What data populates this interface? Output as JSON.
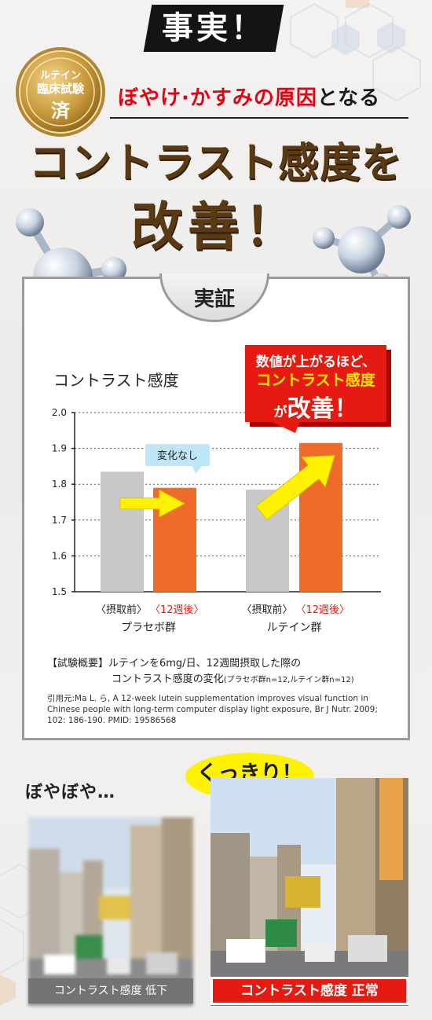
{
  "header": {
    "fact_label": "事実！",
    "badge": {
      "line1": "ルテイン",
      "line2": "臨床試験",
      "line3": "済"
    },
    "subtitle_red": "ぼやけ·かすみの原因",
    "subtitle_rest": "となる",
    "headline_line1": "コントラスト感度を",
    "headline_line2": "改善！"
  },
  "proof": {
    "tab_label": "実証",
    "chart_title": "コントラスト感度",
    "callout": {
      "line1": "数値が上がるほど、",
      "line2": "コントラスト感度",
      "line3_small": "が",
      "line3_big": "改善！"
    },
    "no_change_label": "変化なし",
    "group_labels": [
      {
        "before": "〈摂取前〉",
        "after": "〈12週後〉",
        "name": "プラセボ群"
      },
      {
        "before": "〈摂取前〉",
        "after": "〈12週後〉",
        "name": "ルテイン群"
      }
    ],
    "note_line1": "【試験概要】ルテインを6mg/日、12週間摂取した際の",
    "note_line2_main": "コントラスト感度の変化",
    "note_line2_small": "(プラセボ群n=12,ルテイン群n=12)",
    "citation": "引用元:Ma L. ら, A 12-week lutein supplementation improves visual function in Chinese people with long-term computer display light exposure, Br J Nutr. 2009; 102: 186-190. PMID: 19586568"
  },
  "chart_data": {
    "type": "bar",
    "title": "コントラスト感度",
    "xlabel": "",
    "ylabel": "",
    "ylim": [
      1.5,
      2.0
    ],
    "yticks": [
      "2.0",
      "1.9",
      "1.8",
      "1.7",
      "1.6",
      "1.5"
    ],
    "categories": [
      "プラセボ群 〈摂取前〉",
      "プラセボ群 〈12週後〉",
      "ルテイン群 〈摂取前〉",
      "ルテイン群 〈12週後〉"
    ],
    "values": [
      1.835,
      1.79,
      1.785,
      1.915
    ],
    "colors": [
      "#c8c8c8",
      "#ee6b2a",
      "#c8c8c8",
      "#ee6b2a"
    ],
    "grid": true
  },
  "comparison": {
    "blurry_label": "ぼやぼや…",
    "clear_label": "くっきり！",
    "left_caption": "コントラスト感度 低下",
    "right_caption": "コントラスト感度 正常"
  },
  "colors": {
    "accent_red": "#e51b12",
    "bar_orange": "#ee6b2a",
    "bar_gray": "#c8c8c8",
    "arrow_yellow": "#fff200",
    "headline_brown": "#5a3a12"
  }
}
